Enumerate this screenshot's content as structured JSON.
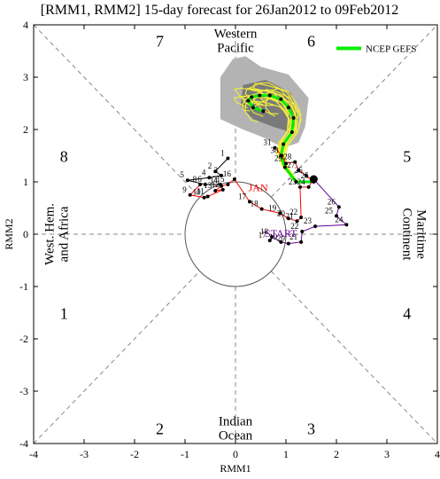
{
  "chart_data": {
    "type": "scatter",
    "title": "[RMM1, RMM2] 15-day forecast for 26Jan2012 to 09Feb2012",
    "xlabel": "RMM1",
    "ylabel": "RMM2",
    "xlim": [
      -4,
      4
    ],
    "ylim": [
      -4,
      4
    ],
    "xticks": [
      "-4",
      "-3",
      "-2",
      "-1",
      "0",
      "1",
      "2",
      "3",
      "4"
    ],
    "yticks": [
      "-4",
      "-3",
      "-2",
      "-1",
      "0",
      "1",
      "2",
      "3",
      "4"
    ],
    "phases": [
      {
        "label": "1",
        "x": -3.4,
        "y": -1.5
      },
      {
        "label": "2",
        "x": -1.5,
        "y": -3.7
      },
      {
        "label": "3",
        "x": 1.5,
        "y": -3.7
      },
      {
        "label": "4",
        "x": 3.4,
        "y": -1.5
      },
      {
        "label": "5",
        "x": 3.4,
        "y": 1.5
      },
      {
        "label": "6",
        "x": 1.5,
        "y": 3.7
      },
      {
        "label": "7",
        "x": -1.5,
        "y": 3.7
      },
      {
        "label": "8",
        "x": -3.4,
        "y": 1.5
      }
    ],
    "regions": [
      {
        "lines": [
          "Western",
          "Pacific"
        ],
        "x": 0,
        "y": 3.7,
        "rotate": 0
      },
      {
        "lines": [
          "Indian",
          "Ocean"
        ],
        "x": 0,
        "y": -3.7,
        "rotate": 0
      },
      {
        "lines": [
          "West. Hem.",
          "and Africa"
        ],
        "x": -3.55,
        "y": 0,
        "rotate": -90
      },
      {
        "lines": [
          "Maritime",
          "Continent"
        ],
        "x": 3.55,
        "y": 0,
        "rotate": 90
      }
    ],
    "legend": {
      "label": "NCEP GEFS",
      "color": "#00ee00",
      "placement": "top-right"
    },
    "observed_december": {
      "color": "#000000",
      "points": [
        {
          "label": "1",
          "x": -0.15,
          "y": 1.45
        },
        {
          "label": "2",
          "x": -0.4,
          "y": 1.2
        },
        {
          "label": "3",
          "x": -0.28,
          "y": 1.12
        },
        {
          "label": "4",
          "x": -0.52,
          "y": 1.08
        },
        {
          "label": "5",
          "x": -0.95,
          "y": 1.03
        },
        {
          "label": "6",
          "x": -0.6,
          "y": 0.95
        },
        {
          "label": "7",
          "x": -0.3,
          "y": 0.95
        }
      ]
    },
    "observed_january": {
      "color": "#ff0000",
      "month_label": "JAN",
      "points": [
        {
          "label": "8",
          "x": -0.7,
          "y": 0.95
        },
        {
          "label": "9",
          "x": -0.9,
          "y": 0.75
        },
        {
          "label": "10",
          "x": -0.62,
          "y": 0.7
        },
        {
          "label": "11",
          "x": -0.55,
          "y": 0.72
        },
        {
          "label": "12",
          "x": -0.25,
          "y": 0.85
        },
        {
          "label": "13",
          "x": -0.4,
          "y": 0.83
        },
        {
          "label": "14",
          "x": -0.28,
          "y": 0.92
        },
        {
          "label": "15",
          "x": -0.15,
          "y": 0.95
        },
        {
          "label": "16",
          "x": -0.02,
          "y": 1.05
        },
        {
          "label": "17",
          "x": 0.28,
          "y": 0.62
        },
        {
          "label": "18",
          "x": 0.52,
          "y": 0.48
        },
        {
          "label": "19",
          "x": 0.88,
          "y": 0.4
        },
        {
          "label": "20",
          "x": 1.05,
          "y": 0.3
        },
        {
          "label": "21",
          "x": 1.22,
          "y": 0.25
        },
        {
          "label": "22",
          "x": 1.3,
          "y": 0.32
        },
        {
          "label": "23",
          "x": 1.28,
          "y": 0.9
        },
        {
          "label": "24",
          "x": 1.45,
          "y": 0.9
        },
        {
          "label": "25",
          "x": 1.52,
          "y": 1.02
        },
        {
          "label": "26",
          "x": 1.4,
          "y": 1.12
        },
        {
          "label": "27",
          "x": 1.25,
          "y": 1.22
        },
        {
          "label": "28",
          "x": 1.18,
          "y": 1.38
        },
        {
          "label": "29",
          "x": 1.0,
          "y": 1.35
        },
        {
          "label": "30",
          "x": 0.92,
          "y": 1.5
        },
        {
          "label": "31",
          "x": 0.78,
          "y": 1.65
        }
      ]
    },
    "start": {
      "label": "START",
      "color": "#660099",
      "points": [
        {
          "label": "",
          "x": 1.55,
          "y": 1.05
        },
        {
          "label": "26",
          "x": 2.05,
          "y": 0.52
        },
        {
          "label": "25",
          "x": 2.0,
          "y": 0.35
        },
        {
          "label": "24",
          "x": 2.2,
          "y": 0.18
        },
        {
          "label": "23",
          "x": 1.58,
          "y": 0.15
        },
        {
          "label": "22",
          "x": 1.32,
          "y": 0.05
        },
        {
          "label": "21",
          "x": 1.3,
          "y": -0.15
        },
        {
          "label": "20",
          "x": 1.05,
          "y": -0.18
        },
        {
          "label": "19",
          "x": 0.9,
          "y": -0.15
        },
        {
          "label": "18",
          "x": 0.72,
          "y": -0.05
        },
        {
          "label": "17",
          "x": 0.68,
          "y": -0.12
        }
      ]
    },
    "forecast_mean": {
      "color": "#00ee00",
      "points": [
        {
          "x": 1.55,
          "y": 1.0
        },
        {
          "x": 1.2,
          "y": 1.0
        },
        {
          "x": 0.98,
          "y": 1.28
        },
        {
          "x": 0.9,
          "y": 1.5
        },
        {
          "x": 0.95,
          "y": 1.72
        },
        {
          "x": 1.12,
          "y": 1.95
        },
        {
          "x": 1.15,
          "y": 2.22
        },
        {
          "x": 1.05,
          "y": 2.42
        },
        {
          "x": 0.9,
          "y": 2.58
        },
        {
          "x": 0.68,
          "y": 2.65
        },
        {
          "x": 0.48,
          "y": 2.65
        },
        {
          "x": 0.32,
          "y": 2.62
        },
        {
          "x": 0.25,
          "y": 2.55
        },
        {
          "x": 0.35,
          "y": 2.42
        },
        {
          "x": 0.55,
          "y": 2.35
        }
      ]
    },
    "uncertainty_90": [
      {
        "x": -0.3,
        "y": 2.2
      },
      {
        "x": -0.3,
        "y": 3.0
      },
      {
        "x": -0.05,
        "y": 3.35
      },
      {
        "x": 0.2,
        "y": 3.4
      },
      {
        "x": 0.5,
        "y": 3.2
      },
      {
        "x": 1.05,
        "y": 3.05
      },
      {
        "x": 1.45,
        "y": 2.6
      },
      {
        "x": 1.38,
        "y": 2.05
      },
      {
        "x": 1.25,
        "y": 1.75
      },
      {
        "x": 0.95,
        "y": 1.65
      },
      {
        "x": 0.55,
        "y": 1.85
      },
      {
        "x": 0.15,
        "y": 2.0
      }
    ],
    "uncertainty_50": [
      {
        "x": 0.1,
        "y": 2.45
      },
      {
        "x": 0.15,
        "y": 2.85
      },
      {
        "x": 0.6,
        "y": 2.95
      },
      {
        "x": 1.1,
        "y": 2.7
      },
      {
        "x": 1.25,
        "y": 2.2
      },
      {
        "x": 1.1,
        "y": 1.95
      },
      {
        "x": 0.75,
        "y": 2.05
      },
      {
        "x": 0.35,
        "y": 2.2
      }
    ],
    "grid": false,
    "unit_circle": true
  }
}
